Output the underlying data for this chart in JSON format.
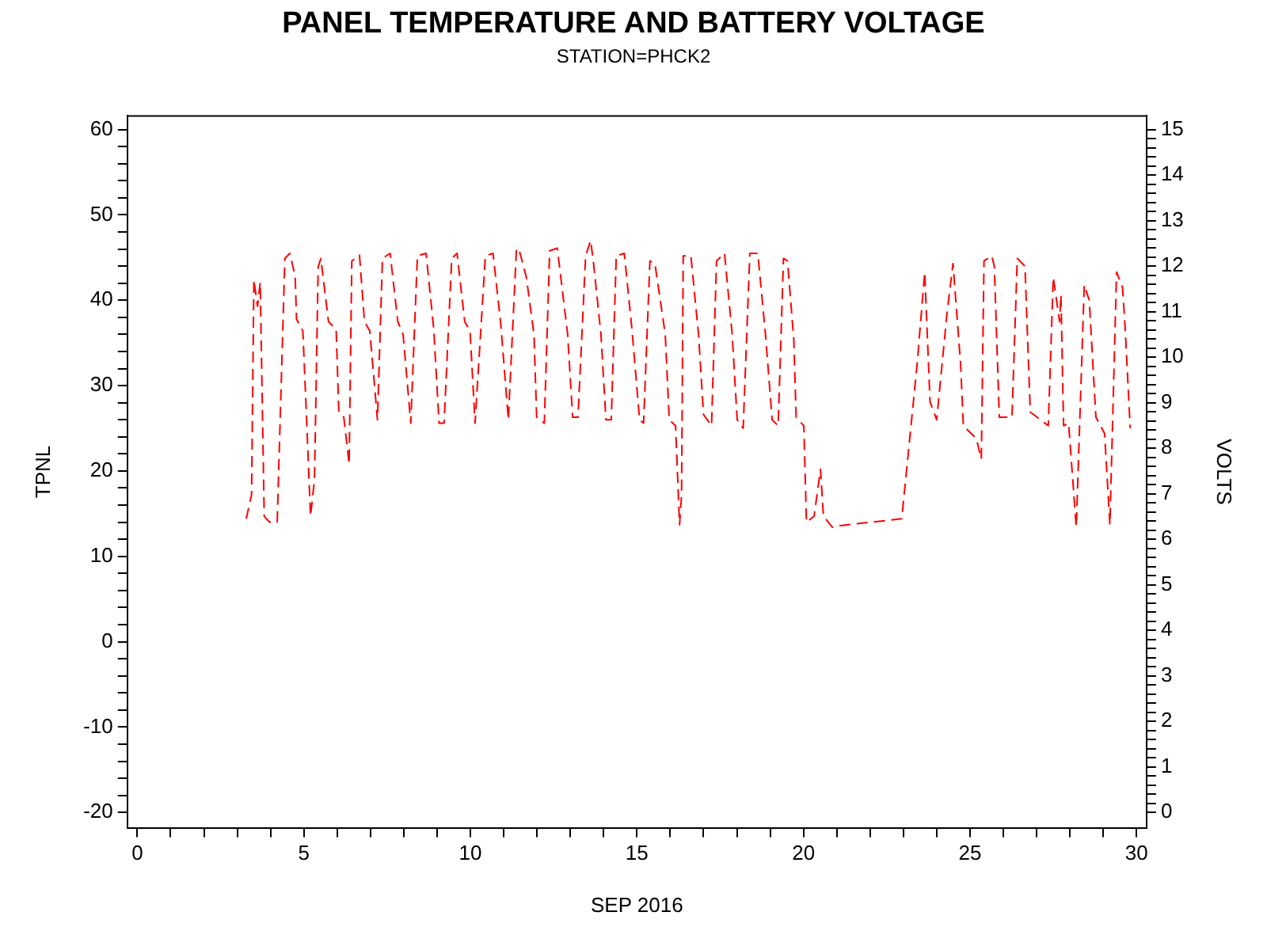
{
  "chart_data": {
    "type": "line",
    "title": "PANEL TEMPERATURE AND BATTERY VOLTAGE",
    "subtitle": "STATION=PHCK2",
    "xlabel": "SEP 2016",
    "ylabel": "TPNL",
    "y2label": "VOLTS",
    "xlim": [
      -0.3,
      30.3
    ],
    "ylim": [
      -21.8,
      61.6
    ],
    "y2lim": [
      -0.34,
      15.3
    ],
    "xticks": [
      0,
      {
        "value": 1,
        "label": null
      },
      {
        "value": 2,
        "label": null
      },
      {
        "value": 3,
        "label": null
      },
      {
        "value": 4,
        "label": null
      },
      5,
      {
        "value": 6,
        "label": null
      },
      {
        "value": 7,
        "label": null
      },
      {
        "value": 8,
        "label": null
      },
      {
        "value": 9,
        "label": null
      },
      10,
      {
        "value": 11,
        "label": null
      },
      {
        "value": 12,
        "label": null
      },
      {
        "value": 13,
        "label": null
      },
      {
        "value": 14,
        "label": null
      },
      15,
      {
        "value": 16,
        "label": null
      },
      {
        "value": 17,
        "label": null
      },
      {
        "value": 18,
        "label": null
      },
      {
        "value": 19,
        "label": null
      },
      20,
      {
        "value": 21,
        "label": null
      },
      {
        "value": 22,
        "label": null
      },
      {
        "value": 23,
        "label": null
      },
      {
        "value": 24,
        "label": null
      },
      25,
      {
        "value": 26,
        "label": null
      },
      {
        "value": 27,
        "label": null
      },
      {
        "value": 28,
        "label": null
      },
      {
        "value": 29,
        "label": null
      },
      30
    ],
    "yticks": [
      -20,
      {
        "value": -18,
        "label": null
      },
      {
        "value": -16,
        "label": null
      },
      {
        "value": -14,
        "label": null
      },
      {
        "value": -12,
        "label": null
      },
      -10,
      {
        "value": -8,
        "label": null
      },
      {
        "value": -6,
        "label": null
      },
      {
        "value": -4,
        "label": null
      },
      {
        "value": -2,
        "label": null
      },
      0,
      {
        "value": 2,
        "label": null
      },
      {
        "value": 4,
        "label": null
      },
      {
        "value": 6,
        "label": null
      },
      {
        "value": 8,
        "label": null
      },
      10,
      {
        "value": 12,
        "label": null
      },
      {
        "value": 14,
        "label": null
      },
      {
        "value": 16,
        "label": null
      },
      {
        "value": 18,
        "label": null
      },
      20,
      {
        "value": 22,
        "label": null
      },
      {
        "value": 24,
        "label": null
      },
      {
        "value": 26,
        "label": null
      },
      {
        "value": 28,
        "label": null
      },
      30,
      {
        "value": 32,
        "label": null
      },
      {
        "value": 34,
        "label": null
      },
      {
        "value": 36,
        "label": null
      },
      {
        "value": 38,
        "label": null
      },
      40,
      {
        "value": 42,
        "label": null
      },
      {
        "value": 44,
        "label": null
      },
      {
        "value": 46,
        "label": null
      },
      {
        "value": 48,
        "label": null
      },
      50,
      {
        "value": 52,
        "label": null
      },
      {
        "value": 54,
        "label": null
      },
      {
        "value": 56,
        "label": null
      },
      {
        "value": 58,
        "label": null
      },
      60
    ],
    "y2ticks": [
      0,
      {
        "value": 0.2,
        "label": null
      },
      {
        "value": 0.4,
        "label": null
      },
      {
        "value": 0.6,
        "label": null
      },
      {
        "value": 0.8,
        "label": null
      },
      1,
      {
        "value": 1.2,
        "label": null
      },
      {
        "value": 1.4,
        "label": null
      },
      {
        "value": 1.6,
        "label": null
      },
      {
        "value": 1.8,
        "label": null
      },
      2,
      {
        "value": 2.2,
        "label": null
      },
      {
        "value": 2.4,
        "label": null
      },
      {
        "value": 2.6,
        "label": null
      },
      {
        "value": 2.8,
        "label": null
      },
      3,
      {
        "value": 3.2,
        "label": null
      },
      {
        "value": 3.4,
        "label": null
      },
      {
        "value": 3.6,
        "label": null
      },
      {
        "value": 3.8,
        "label": null
      },
      4,
      {
        "value": 4.2,
        "label": null
      },
      {
        "value": 4.4,
        "label": null
      },
      {
        "value": 4.6,
        "label": null
      },
      {
        "value": 4.8,
        "label": null
      },
      5,
      {
        "value": 5.2,
        "label": null
      },
      {
        "value": 5.4,
        "label": null
      },
      {
        "value": 5.6,
        "label": null
      },
      {
        "value": 5.8,
        "label": null
      },
      6,
      {
        "value": 6.2,
        "label": null
      },
      {
        "value": 6.4,
        "label": null
      },
      {
        "value": 6.6,
        "label": null
      },
      {
        "value": 6.8,
        "label": null
      },
      7,
      {
        "value": 7.2,
        "label": null
      },
      {
        "value": 7.4,
        "label": null
      },
      {
        "value": 7.6,
        "label": null
      },
      {
        "value": 7.8,
        "label": null
      },
      8,
      {
        "value": 8.2,
        "label": null
      },
      {
        "value": 8.4,
        "label": null
      },
      {
        "value": 8.6,
        "label": null
      },
      {
        "value": 8.8,
        "label": null
      },
      9,
      {
        "value": 9.2,
        "label": null
      },
      {
        "value": 9.4,
        "label": null
      },
      {
        "value": 9.6,
        "label": null
      },
      {
        "value": 9.8,
        "label": null
      },
      10,
      {
        "value": 10.2,
        "label": null
      },
      {
        "value": 10.4,
        "label": null
      },
      {
        "value": 10.6,
        "label": null
      },
      {
        "value": 10.8,
        "label": null
      },
      11,
      {
        "value": 11.2,
        "label": null
      },
      {
        "value": 11.4,
        "label": null
      },
      {
        "value": 11.6,
        "label": null
      },
      {
        "value": 11.8,
        "label": null
      },
      12,
      {
        "value": 12.2,
        "label": null
      },
      {
        "value": 12.4,
        "label": null
      },
      {
        "value": 12.6,
        "label": null
      },
      {
        "value": 12.8,
        "label": null
      },
      13,
      {
        "value": 13.2,
        "label": null
      },
      {
        "value": 13.4,
        "label": null
      },
      {
        "value": 13.6,
        "label": null
      },
      {
        "value": 13.8,
        "label": null
      },
      14,
      {
        "value": 14.2,
        "label": null
      },
      {
        "value": 14.4,
        "label": null
      },
      {
        "value": 14.6,
        "label": null
      },
      {
        "value": 14.8,
        "label": null
      },
      15
    ],
    "grid": false,
    "legend": false,
    "marker": "none",
    "line_style": "dashed",
    "series": [
      {
        "color": "#ff0000",
        "x": [
          3.27,
          3.43,
          3.5,
          3.61,
          3.69,
          3.81,
          3.97,
          4.2,
          4.43,
          4.58,
          4.74,
          4.78,
          4.97,
          5.08,
          5.2,
          5.32,
          5.43,
          5.51,
          5.74,
          5.97,
          6.05,
          6.2,
          6.36,
          6.44,
          6.67,
          6.82,
          6.98,
          7.21,
          7.36,
          7.59,
          7.82,
          7.98,
          8.21,
          8.41,
          8.67,
          8.9,
          9.06,
          9.21,
          9.44,
          9.6,
          9.83,
          9.99,
          10.14,
          10.45,
          10.68,
          10.91,
          11.14,
          11.38,
          11.45,
          11.68,
          11.91,
          11.99,
          12.22,
          12.38,
          12.61,
          12.92,
          13.07,
          13.23,
          13.46,
          13.61,
          13.69,
          13.92,
          14.07,
          14.23,
          14.38,
          14.62,
          14.85,
          15.08,
          15.2,
          15.39,
          15.54,
          15.85,
          15.97,
          16.16,
          16.28,
          16.34,
          16.39,
          16.62,
          16.85,
          17.0,
          17.24,
          17.39,
          17.63,
          17.86,
          18.01,
          18.19,
          18.39,
          18.63,
          18.86,
          19.06,
          19.24,
          19.4,
          19.52,
          19.71,
          19.78,
          19.94,
          20.01,
          20.09,
          20.32,
          20.51,
          20.6,
          20.87,
          21.1,
          22.95,
          23.41,
          23.64,
          23.8,
          24.0,
          24.31,
          24.49,
          24.72,
          24.8,
          25.19,
          25.34,
          25.42,
          25.65,
          25.73,
          25.88,
          26.26,
          26.42,
          26.65,
          26.81,
          27.12,
          27.35,
          27.5,
          27.69,
          27.73,
          27.81,
          27.96,
          28.19,
          28.43,
          28.58,
          28.78,
          29.04,
          29.2,
          29.4,
          29.58,
          29.66,
          29.81
        ],
        "values": [
          14.4,
          17.2,
          42.4,
          39.3,
          42.1,
          14.7,
          14.0,
          14.0,
          44.9,
          45.5,
          42.8,
          37.8,
          36.4,
          26.3,
          14.7,
          19.0,
          43.9,
          44.9,
          37.5,
          36.6,
          26.9,
          26.3,
          20.8,
          44.6,
          45.3,
          37.5,
          36.4,
          26.0,
          44.9,
          45.5,
          37.5,
          36.0,
          25.6,
          45.2,
          45.5,
          36.6,
          25.6,
          25.6,
          44.9,
          45.5,
          37.5,
          36.4,
          25.6,
          45.2,
          45.5,
          37.3,
          26.0,
          45.8,
          46.1,
          42.7,
          36.0,
          26.3,
          25.6,
          45.8,
          46.1,
          36.0,
          26.3,
          26.3,
          45.2,
          47.0,
          44.6,
          36.0,
          26.0,
          26.0,
          45.2,
          45.5,
          36.6,
          26.0,
          25.6,
          44.6,
          44.3,
          36.0,
          26.0,
          25.3,
          13.7,
          17.2,
          45.2,
          45.2,
          36.0,
          26.6,
          25.3,
          44.6,
          45.5,
          36.0,
          26.0,
          25.0,
          45.5,
          45.5,
          36.0,
          26.0,
          25.3,
          44.9,
          44.6,
          35.4,
          26.3,
          25.6,
          25.3,
          14.0,
          14.7,
          20.2,
          14.7,
          13.4,
          13.6,
          14.4,
          32.4,
          43.3,
          28.1,
          26.0,
          38.5,
          44.3,
          32.4,
          25.3,
          23.8,
          21.4,
          44.6,
          45.2,
          44.0,
          26.3,
          26.3,
          44.9,
          44.0,
          26.9,
          26.0,
          25.3,
          42.7,
          37.5,
          40.6,
          25.3,
          25.6,
          13.4,
          41.8,
          40.0,
          26.3,
          24.4,
          13.7,
          43.3,
          41.5,
          36.6,
          25.0
        ]
      }
    ]
  }
}
